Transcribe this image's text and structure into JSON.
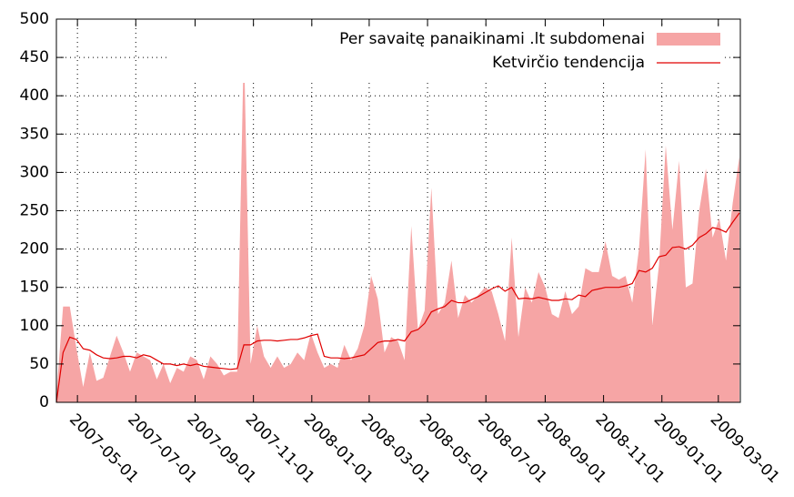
{
  "chart_data": {
    "type": "area",
    "x": [
      "2007-04-09",
      "2007-04-16",
      "2007-04-23",
      "2007-04-30",
      "2007-05-07",
      "2007-05-14",
      "2007-05-21",
      "2007-05-28",
      "2007-06-04",
      "2007-06-11",
      "2007-06-18",
      "2007-06-25",
      "2007-07-02",
      "2007-07-09",
      "2007-07-16",
      "2007-07-23",
      "2007-07-30",
      "2007-08-06",
      "2007-08-13",
      "2007-08-20",
      "2007-08-27",
      "2007-09-03",
      "2007-09-10",
      "2007-09-17",
      "2007-09-24",
      "2007-10-01",
      "2007-10-08",
      "2007-10-15",
      "2007-10-22",
      "2007-10-29",
      "2007-11-05",
      "2007-11-12",
      "2007-11-19",
      "2007-11-26",
      "2007-12-03",
      "2007-12-10",
      "2007-12-17",
      "2007-12-24",
      "2007-12-31",
      "2008-01-07",
      "2008-01-14",
      "2008-01-21",
      "2008-01-28",
      "2008-02-04",
      "2008-02-11",
      "2008-02-18",
      "2008-02-25",
      "2008-03-03",
      "2008-03-10",
      "2008-03-17",
      "2008-03-24",
      "2008-03-31",
      "2008-04-07",
      "2008-04-14",
      "2008-04-21",
      "2008-04-28",
      "2008-05-05",
      "2008-05-12",
      "2008-05-19",
      "2008-05-26",
      "2008-06-02",
      "2008-06-09",
      "2008-06-16",
      "2008-06-23",
      "2008-06-30",
      "2008-07-07",
      "2008-07-14",
      "2008-07-21",
      "2008-07-28",
      "2008-08-04",
      "2008-08-11",
      "2008-08-18",
      "2008-08-25",
      "2008-09-01",
      "2008-09-08",
      "2008-09-15",
      "2008-09-22",
      "2008-09-29",
      "2008-10-06",
      "2008-10-13",
      "2008-10-20",
      "2008-10-27",
      "2008-11-03",
      "2008-11-10",
      "2008-11-17",
      "2008-11-24",
      "2008-12-01",
      "2008-12-08",
      "2008-12-15",
      "2008-12-22",
      "2008-12-29",
      "2009-01-05",
      "2009-01-12",
      "2009-01-19",
      "2009-01-26",
      "2009-02-02",
      "2009-02-09",
      "2009-02-16",
      "2009-02-23",
      "2009-03-02",
      "2009-03-09",
      "2009-03-16",
      "2009-03-23"
    ],
    "series": [
      {
        "name": "Per savaitę panaikinami .lt subdomenai",
        "type": "area",
        "color": "#f6a5a5",
        "values": [
          10,
          125,
          125,
          70,
          20,
          65,
          28,
          32,
          60,
          87,
          65,
          40,
          65,
          60,
          55,
          30,
          50,
          25,
          45,
          40,
          60,
          55,
          30,
          60,
          50,
          35,
          40,
          40,
          470,
          50,
          100,
          60,
          45,
          60,
          45,
          50,
          65,
          55,
          90,
          65,
          45,
          50,
          45,
          75,
          55,
          70,
          100,
          165,
          135,
          65,
          85,
          80,
          55,
          230,
          95,
          120,
          280,
          115,
          130,
          185,
          110,
          140,
          130,
          140,
          150,
          145,
          115,
          80,
          215,
          85,
          150,
          130,
          170,
          150,
          115,
          110,
          145,
          115,
          125,
          175,
          170,
          170,
          210,
          165,
          160,
          165,
          130,
          200,
          330,
          100,
          180,
          335,
          225,
          315,
          150,
          155,
          250,
          305,
          215,
          240,
          185,
          260,
          320
        ]
      },
      {
        "name": "Ketvirčio tendencija",
        "type": "line",
        "color": "#e00000",
        "values": [
          0,
          65,
          85,
          82,
          70,
          68,
          62,
          58,
          57,
          58,
          60,
          60,
          58,
          62,
          60,
          55,
          50,
          50,
          48,
          50,
          48,
          50,
          47,
          46,
          45,
          44,
          43,
          44,
          75,
          75,
          80,
          81,
          81,
          80,
          81,
          82,
          82,
          84,
          87,
          89,
          60,
          58,
          58,
          57,
          58,
          60,
          62,
          70,
          78,
          80,
          80,
          82,
          80,
          92,
          95,
          103,
          118,
          122,
          125,
          133,
          130,
          130,
          134,
          138,
          143,
          148,
          152,
          145,
          150,
          135,
          136,
          135,
          137,
          135,
          133,
          133,
          135,
          134,
          140,
          138,
          146,
          148,
          150,
          150,
          150,
          152,
          155,
          172,
          170,
          175,
          190,
          192,
          202,
          203,
          200,
          205,
          215,
          220,
          228,
          226,
          222,
          235,
          247
        ]
      }
    ],
    "xlim": [
      "2007-04-09",
      "2009-03-24"
    ],
    "xticks": [
      "2007-05-01",
      "2007-07-01",
      "2007-09-01",
      "2007-11-01",
      "2008-01-01",
      "2008-03-01",
      "2008-05-01",
      "2008-07-01",
      "2008-09-01",
      "2008-11-01",
      "2009-01-01",
      "2009-03-01"
    ],
    "ylim": [
      0,
      500
    ],
    "yticks": [
      0,
      50,
      100,
      150,
      200,
      250,
      300,
      350,
      400,
      450,
      500
    ],
    "grid": true,
    "legend": "top-right"
  }
}
